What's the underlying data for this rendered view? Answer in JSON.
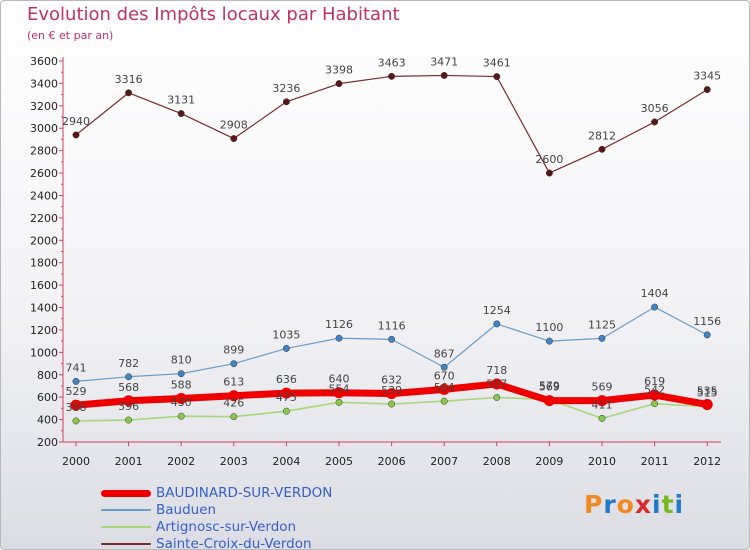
{
  "title": "Evolution des Impôts locaux par Habitant",
  "subtitle": "(en € et par an)",
  "logo": {
    "text": "Proxiti",
    "colors": [
      "#f08a20",
      "#1f78c8",
      "#f08a20",
      "#d92b2b",
      "#1f78c8",
      "#7ab822",
      "#1f78c8"
    ]
  },
  "chart_data": {
    "type": "line",
    "x": [
      "2000",
      "2001",
      "2002",
      "2003",
      "2004",
      "2005",
      "2006",
      "2007",
      "2008",
      "2009",
      "2010",
      "2011",
      "2012"
    ],
    "ylim": [
      200,
      3600
    ],
    "yticks": [
      "200",
      "400",
      "600",
      "800",
      "1000",
      "1200",
      "1400",
      "1600",
      "1800",
      "2000",
      "2200",
      "2400",
      "2600",
      "2800",
      "3000",
      "3200",
      "3400",
      "3600"
    ],
    "grid": false,
    "legend_position": "bottom-left",
    "series": [
      {
        "name": "Sainte-Croix-du-Verdon",
        "color": "#7a2b2b",
        "marker": "#5a1515",
        "width": 1.2,
        "values": [
          2940,
          3316,
          3131,
          2908,
          3236,
          3398,
          3463,
          3471,
          3461,
          2600,
          2812,
          3056,
          3345
        ]
      },
      {
        "name": "Bauduen",
        "color": "#6a9cc9",
        "marker": "#3f84c5",
        "width": 1.2,
        "values": [
          741,
          782,
          810,
          899,
          1035,
          1126,
          1116,
          867,
          1254,
          1100,
          1125,
          1404,
          1156
        ]
      },
      {
        "name": "Artignosc-sur-Verdon",
        "color": "#a6d87a",
        "marker": "#88c94a",
        "width": 1.6,
        "values": [
          388,
          396,
          430,
          426,
          475,
          554,
          539,
          564,
          597,
          579,
          411,
          542,
          515
        ]
      },
      {
        "name": "BAUDINARD-SUR-VERDON",
        "color": "#ef0000",
        "marker": "#ef0000",
        "width": 7,
        "values": [
          529,
          568,
          588,
          613,
          636,
          640,
          632,
          670,
          718,
          569,
          569,
          619,
          535
        ]
      }
    ]
  },
  "legend": [
    {
      "label": "BAUDINARD-SUR-VERDON",
      "color": "#ef0000",
      "thickness": 7
    },
    {
      "label": "Bauduen",
      "color": "#6a9cc9",
      "thickness": 2
    },
    {
      "label": "Artignosc-sur-Verdon",
      "color": "#a6d87a",
      "thickness": 2
    },
    {
      "label": "Sainte-Croix-du-Verdon",
      "color": "#7a2b2b",
      "thickness": 2
    }
  ]
}
